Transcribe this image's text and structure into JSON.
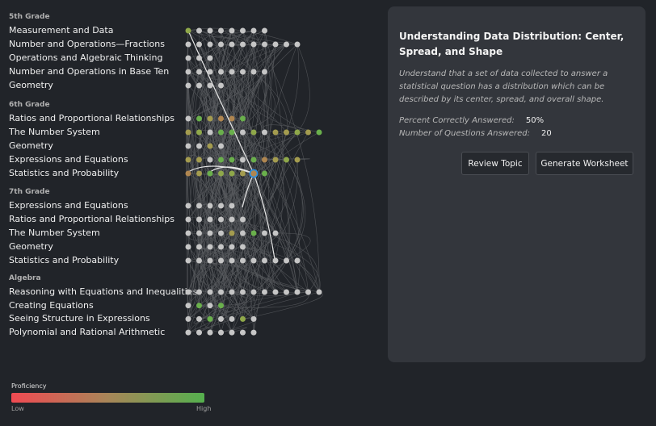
{
  "colors": {
    "none": "#c6c6c6",
    "high": "#6ab04c",
    "mid_high": "#8fa84a",
    "mid": "#a49c4f",
    "low_mid": "#b08650",
    "selected_ring": "#2a8ee0",
    "edge": "#5a5c60",
    "highlight_edge": "#e6e6e6"
  },
  "grades": [
    {
      "name": "5th Grade",
      "domains": [
        {
          "label": "Measurement and Data",
          "nodes": [
            "mid_high",
            "none",
            "none",
            "none",
            "none",
            "none",
            "none",
            "none"
          ]
        },
        {
          "label": "Number and Operations—Fractions",
          "nodes": [
            "none",
            "none",
            "none",
            "none",
            "none",
            "none",
            "none",
            "none",
            "none",
            "none",
            "none"
          ]
        },
        {
          "label": "Operations and Algebraic Thinking",
          "nodes": [
            "none",
            "none",
            "none"
          ]
        },
        {
          "label": "Number and Operations in Base Ten",
          "nodes": [
            "none",
            "none",
            "none",
            "none",
            "none",
            "none",
            "none",
            "none"
          ]
        },
        {
          "label": "Geometry",
          "nodes": [
            "none",
            "none",
            "none",
            "none"
          ]
        }
      ]
    },
    {
      "name": "6th Grade",
      "domains": [
        {
          "label": "Ratios and Proportional Relationships",
          "nodes": [
            "none",
            "high",
            "mid",
            "low_mid",
            "low_mid",
            "high"
          ]
        },
        {
          "label": "The Number System",
          "nodes": [
            "mid",
            "mid_high",
            "none",
            "high",
            "high",
            "none",
            "mid_high",
            "none",
            "mid",
            "mid",
            "mid_high",
            "mid",
            "high"
          ]
        },
        {
          "label": "Geometry",
          "nodes": [
            "none",
            "none",
            "mid",
            "none"
          ]
        },
        {
          "label": "Expressions and Equations",
          "nodes": [
            "mid",
            "mid",
            "none",
            "high",
            "high",
            "none",
            "high",
            "low_mid",
            "mid",
            "mid_high",
            "mid"
          ]
        },
        {
          "label": "Statistics and Probability",
          "nodes": [
            "low_mid",
            "mid",
            "high",
            "mid_high",
            "mid_high",
            "mid",
            "low_mid",
            "high"
          ],
          "selected": 6
        }
      ]
    },
    {
      "name": "7th Grade",
      "domains": [
        {
          "label": "Expressions and Equations",
          "nodes": [
            "none",
            "none",
            "none",
            "none",
            "none"
          ]
        },
        {
          "label": "Ratios and Proportional Relationships",
          "nodes": [
            "none",
            "none",
            "none",
            "none",
            "none",
            "none"
          ]
        },
        {
          "label": "The Number System",
          "nodes": [
            "none",
            "none",
            "none",
            "none",
            "mid",
            "none",
            "high",
            "none",
            "none"
          ]
        },
        {
          "label": "Geometry",
          "nodes": [
            "none",
            "none",
            "none",
            "none",
            "none",
            "none"
          ]
        },
        {
          "label": "Statistics and Probability",
          "nodes": [
            "none",
            "none",
            "none",
            "none",
            "none",
            "none",
            "none",
            "none",
            "none",
            "none",
            "none"
          ]
        }
      ]
    },
    {
      "name": "Algebra",
      "domains": [
        {
          "label": "Reasoning with Equations and Inequalities",
          "nodes": [
            "none",
            "none",
            "none",
            "none",
            "none",
            "none",
            "none",
            "none",
            "none",
            "none",
            "none",
            "none",
            "none"
          ]
        },
        {
          "label": "Creating Equations",
          "nodes": [
            "none",
            "high",
            "none",
            "high"
          ]
        },
        {
          "label": "Seeing Structure in Expressions",
          "nodes": [
            "none",
            "none",
            "high",
            "none",
            "none",
            "mid_high",
            "none"
          ]
        },
        {
          "label": "Polynomial and Rational Arithmetic",
          "nodes": [
            "none",
            "none",
            "none",
            "none",
            "none",
            "none",
            "none"
          ]
        }
      ]
    }
  ],
  "detail": {
    "title": "Understanding Data Distribution: Center, Spread, and Shape",
    "description": "Understand that a set of data collected to answer a statistical question has a distribution which can be described by its center, spread, and overall shape.",
    "percent_label": "Percent Correctly Answered:",
    "percent_value": "50%",
    "count_label": "Number of Questions Answered:",
    "count_value": "20",
    "review_button": "Review Topic",
    "worksheet_button": "Generate Worksheet"
  },
  "legend": {
    "title": "Proficiency",
    "low": "Low",
    "high": "High"
  }
}
